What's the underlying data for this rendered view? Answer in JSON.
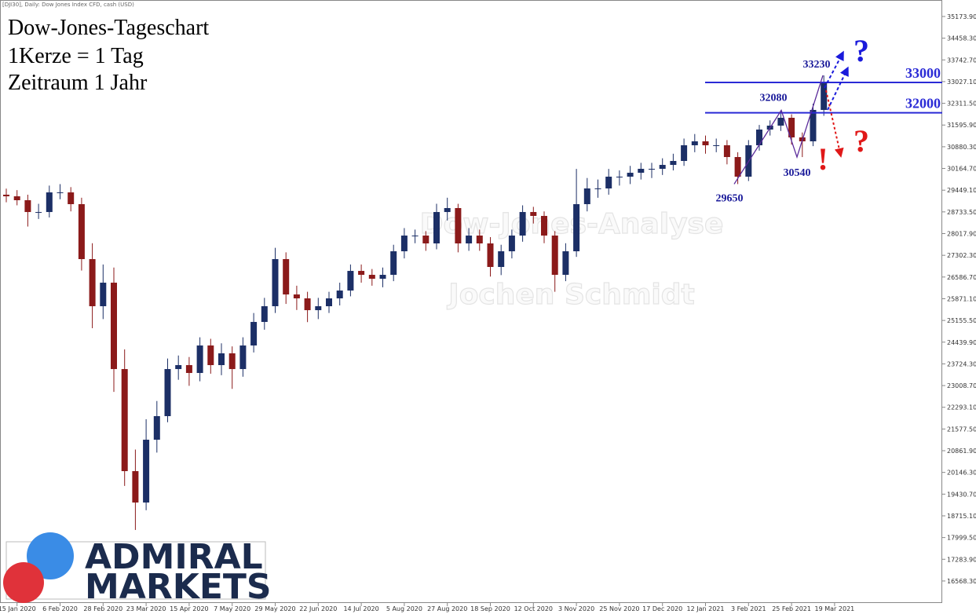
{
  "chart_data": {
    "type": "candlestick",
    "header": "[DJI30], Daily:  Dow Jones Index CFD, cash (USD)",
    "title_lines": [
      "Dow-Jones-Tageschart",
      "1Kerze = 1 Tag",
      "Zeitraum 1 Jahr"
    ],
    "watermarks": [
      "Dow-Jones-Analyse",
      "Jochen Schmidt"
    ],
    "logo": [
      "ADMIRAL",
      "MARKETS"
    ],
    "up_color": "#1c2f66",
    "down_color": "#8b1a1a",
    "ylim": [
      15842,
      35717
    ],
    "yticks": [
      {
        "value": 35173.9,
        "label": "35173.90"
      },
      {
        "value": 34458.3,
        "label": "34458.30"
      },
      {
        "value": 33742.7,
        "label": "33742.70"
      },
      {
        "value": 33027.1,
        "label": "33027.10"
      },
      {
        "value": 32311.5,
        "label": "32311.50"
      },
      {
        "value": 31595.9,
        "label": "31595.90"
      },
      {
        "value": 30880.3,
        "label": "30880.30"
      },
      {
        "value": 30164.7,
        "label": "30164.70"
      },
      {
        "value": 29449.1,
        "label": "29449.10"
      },
      {
        "value": 28733.5,
        "label": "28733.50"
      },
      {
        "value": 28017.9,
        "label": "28017.90"
      },
      {
        "value": 27302.3,
        "label": "27302.30"
      },
      {
        "value": 26586.7,
        "label": "26586.70"
      },
      {
        "value": 25871.1,
        "label": "25871.10"
      },
      {
        "value": 25155.5,
        "label": "25155.50"
      },
      {
        "value": 24439.9,
        "label": "24439.90"
      },
      {
        "value": 23724.3,
        "label": "23724.30"
      },
      {
        "value": 23008.7,
        "label": "23008.70"
      },
      {
        "value": 22293.1,
        "label": "22293.10"
      },
      {
        "value": 21577.5,
        "label": "21577.50"
      },
      {
        "value": 20861.9,
        "label": "20861.90"
      },
      {
        "value": 20146.3,
        "label": "20146.30"
      },
      {
        "value": 19430.7,
        "label": "19430.70"
      },
      {
        "value": 18715.1,
        "label": "18715.10"
      },
      {
        "value": 17999.5,
        "label": "17999.50"
      },
      {
        "value": 17283.9,
        "label": "17283.90"
      },
      {
        "value": 16568.3,
        "label": "16568.30"
      }
    ],
    "categories": [
      null,
      "15 Jan 2020",
      null,
      null,
      null,
      "6 Feb 2020",
      null,
      null,
      null,
      "28 Feb 2020",
      null,
      null,
      null,
      "23 Mar 2020",
      null,
      null,
      null,
      "15 Apr 2020",
      null,
      null,
      null,
      "7 May 2020",
      null,
      null,
      null,
      "29 May 2020",
      null,
      null,
      null,
      "22 Jun 2020",
      null,
      null,
      null,
      "14 Jul 2020",
      null,
      null,
      null,
      "5 Aug 2020",
      null,
      null,
      null,
      "27 Aug 2020",
      null,
      null,
      null,
      "18 Sep 2020",
      null,
      null,
      null,
      "12 Oct 2020",
      null,
      null,
      null,
      "3 Nov 2020",
      null,
      null,
      null,
      "25 Nov 2020",
      null,
      null,
      null,
      "17 Dec 2020",
      null,
      null,
      null,
      "12 Jan 2021",
      null,
      null,
      null,
      "3 Feb 2021",
      null,
      null,
      null,
      "25 Feb 2021",
      null,
      null,
      null,
      "19 Mar 2021"
    ],
    "open": [
      29300,
      29247,
      29118,
      28729,
      28729,
      29376,
      29376,
      28988,
      27177,
      25624,
      26400,
      23553,
      20189,
      19154,
      21224,
      22001,
      23553,
      23683,
      23424,
      24330,
      23683,
      24071,
      23553,
      24330,
      25106,
      25624,
      27177,
      26012,
      25883,
      25494,
      25624,
      25883,
      26141,
      26788,
      26659,
      26530,
      26659,
      27435,
      27953,
      27953,
      27694,
      28729,
      28859,
      27694,
      27953,
      27694,
      26918,
      27435,
      27953,
      28729,
      28600,
      27953,
      26659,
      27435,
      28988,
      29506,
      29506,
      29894,
      29894,
      30023,
      30153,
      30153,
      30282,
      30412,
      30929,
      31059,
      30929,
      30929,
      30541,
      29894,
      30929,
      31447,
      31576,
      31835,
      31188,
      31059,
      32094,
      null
    ],
    "high": [
      29500,
      29450,
      29300,
      29000,
      29600,
      29650,
      29550,
      29200,
      27700,
      27000,
      26900,
      24200,
      20900,
      21900,
      22500,
      23900,
      24000,
      23950,
      24600,
      24550,
      24400,
      24300,
      24600,
      25400,
      25900,
      27550,
      27400,
      26300,
      26100,
      25900,
      26100,
      26400,
      27000,
      27000,
      26850,
      26900,
      27650,
      28200,
      28150,
      28100,
      29000,
      29200,
      29000,
      28200,
      28150,
      27900,
      27650,
      28150,
      28950,
      28900,
      28750,
      28100,
      27700,
      30150,
      29850,
      29800,
      30150,
      30100,
      30250,
      30350,
      30350,
      30500,
      30650,
      31150,
      31300,
      31250,
      31150,
      31100,
      30700,
      31100,
      31600,
      31750,
      32080,
      31950,
      31350,
      32300,
      33230,
      null
    ],
    "low": [
      29050,
      28950,
      28250,
      28500,
      28550,
      29150,
      28750,
      26800,
      24900,
      25200,
      22800,
      19700,
      18250,
      18900,
      20800,
      21800,
      23200,
      23000,
      23150,
      23400,
      23350,
      22900,
      23300,
      24100,
      24850,
      25400,
      25700,
      25500,
      25100,
      25200,
      25400,
      25650,
      25950,
      26400,
      26300,
      26250,
      26450,
      27200,
      27700,
      27450,
      27500,
      28450,
      27400,
      27450,
      27450,
      26600,
      26650,
      27200,
      27750,
      28350,
      27700,
      26100,
      26450,
      27250,
      28750,
      29200,
      29300,
      29600,
      29650,
      29800,
      29850,
      29950,
      30100,
      30250,
      30700,
      30650,
      30700,
      30300,
      29650,
      29750,
      30750,
      31250,
      31400,
      30950,
      30540,
      30900,
      31900,
      null
    ],
    "close": [
      29247,
      29118,
      28729,
      28729,
      29376,
      29376,
      28988,
      27177,
      25624,
      26400,
      23553,
      20189,
      19154,
      21224,
      22001,
      23553,
      23683,
      23424,
      24330,
      23683,
      24071,
      23553,
      24330,
      25106,
      25624,
      27177,
      26012,
      25883,
      25494,
      25624,
      25883,
      26141,
      26788,
      26659,
      26530,
      26659,
      27435,
      27953,
      27953,
      27694,
      28729,
      28859,
      27694,
      27953,
      27694,
      26918,
      27435,
      27953,
      28729,
      28600,
      27953,
      26659,
      27435,
      28988,
      29506,
      29506,
      29894,
      29894,
      30023,
      30153,
      30153,
      30282,
      30412,
      30929,
      31059,
      30929,
      30929,
      30541,
      29894,
      30929,
      31447,
      31576,
      31835,
      31188,
      31059,
      32094,
      33000,
      null
    ],
    "levels": [
      33000,
      32000
    ],
    "level_color": "#2a2ad6",
    "pivots": [
      33230,
      32080,
      30540,
      29650
    ],
    "pivot_color": "#5a2a9a",
    "signs": [
      {
        "text": "?",
        "color": "#1a1adb"
      },
      {
        "text": "?",
        "color": "#e01818"
      },
      {
        "text": "!",
        "color": "#e01818"
      }
    ]
  }
}
